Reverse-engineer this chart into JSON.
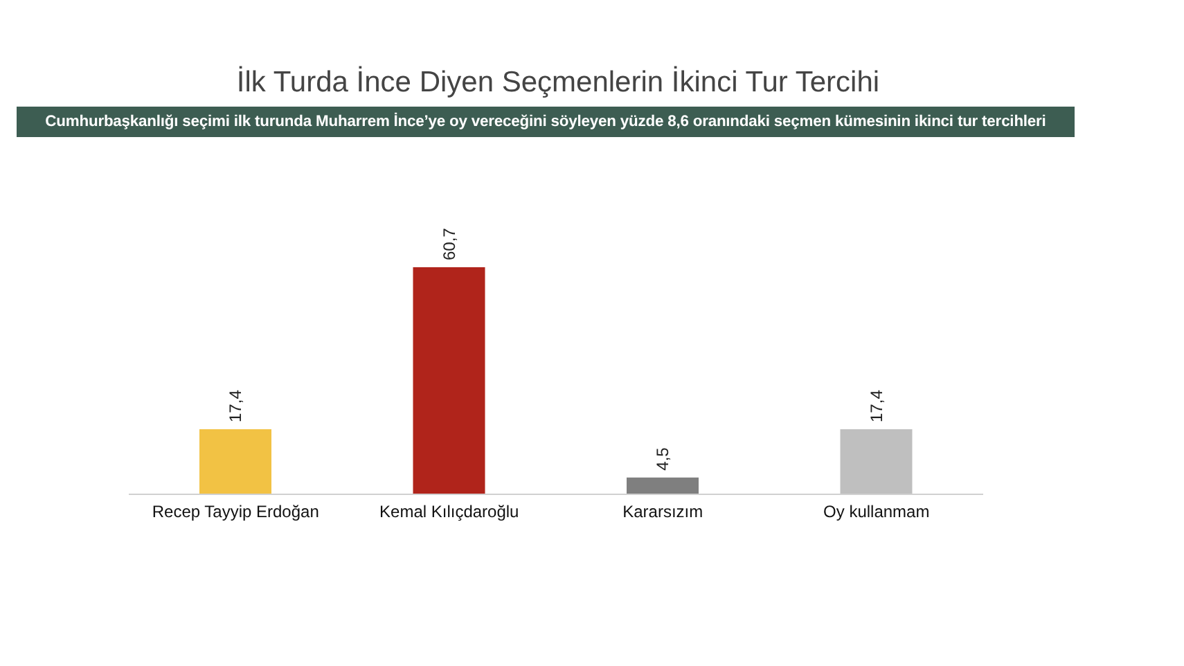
{
  "chart_data": {
    "type": "bar",
    "title": "İlk Turda İnce Diyen Seçmenlerin İkinci Tur Tercihi",
    "subtitle": "Cumhurbaşkanlığı seçimi ilk turunda Muharrem İnce’ye oy vereceğini söyleyen yüzde 8,6 oranındaki seçmen kümesinin ikinci tur tercihleri",
    "categories": [
      "Recep Tayyip Erdoğan",
      "Kemal Kılıçdaroğlu",
      "Kararsızım",
      "Oy kullanmam"
    ],
    "values": [
      17.4,
      60.7,
      4.5,
      17.4
    ],
    "colors": [
      "#f2c244",
      "#b0241b",
      "#7f7f7f",
      "#bfbfbf"
    ],
    "value_labels": [
      "17,4",
      "60,7",
      "4,5",
      "17,4"
    ]
  }
}
